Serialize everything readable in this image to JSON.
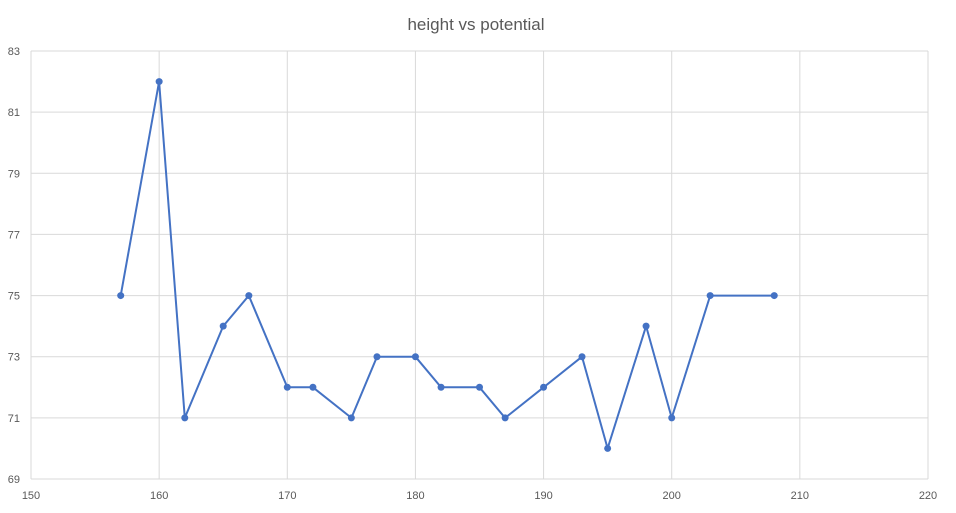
{
  "chart_data": {
    "type": "line",
    "title": "height vs potential",
    "xlabel": "",
    "ylabel": "",
    "xlim": [
      150,
      220
    ],
    "ylim": [
      69,
      83
    ],
    "xticks": [
      150,
      160,
      170,
      180,
      190,
      200,
      210,
      220
    ],
    "yticks": [
      69,
      71,
      73,
      75,
      77,
      79,
      81,
      83
    ],
    "grid": true,
    "legend": "none",
    "series": [
      {
        "color": "#4472c4",
        "points": [
          {
            "x": 157,
            "y": 75
          },
          {
            "x": 160,
            "y": 82
          },
          {
            "x": 162,
            "y": 71
          },
          {
            "x": 165,
            "y": 74
          },
          {
            "x": 167,
            "y": 75
          },
          {
            "x": 170,
            "y": 72
          },
          {
            "x": 172,
            "y": 72
          },
          {
            "x": 175,
            "y": 71
          },
          {
            "x": 177,
            "y": 73
          },
          {
            "x": 180,
            "y": 73
          },
          {
            "x": 182,
            "y": 72
          },
          {
            "x": 185,
            "y": 72
          },
          {
            "x": 187,
            "y": 71
          },
          {
            "x": 190,
            "y": 72
          },
          {
            "x": 193,
            "y": 73
          },
          {
            "x": 195,
            "y": 70
          },
          {
            "x": 198,
            "y": 74
          },
          {
            "x": 200,
            "y": 71
          },
          {
            "x": 203,
            "y": 75
          },
          {
            "x": 208,
            "y": 75
          }
        ]
      }
    ]
  }
}
